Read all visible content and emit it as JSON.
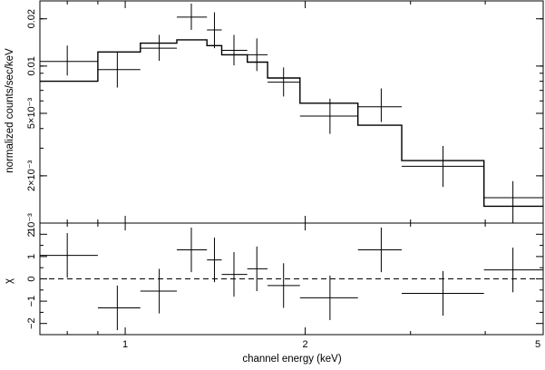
{
  "chart_data": [
    {
      "panel": "spectrum",
      "type": "line",
      "ylabel": "normalized counts/sec/keV",
      "yscale": "log",
      "ylim": [
        0.001,
        0.026
      ],
      "xscale": "log",
      "xlim": [
        0.72,
        5.0
      ],
      "y_ticks": [
        {
          "value": 0.02,
          "label": "0.02"
        },
        {
          "value": 0.01,
          "label": "0.01"
        },
        {
          "value": 0.005,
          "label": "5×10⁻³"
        },
        {
          "value": 0.002,
          "label": "2×10⁻³"
        },
        {
          "value": 0.001,
          "label": "10⁻³"
        }
      ],
      "data_points": [
        {
          "x": 0.8,
          "xlo": 0.72,
          "xhi": 0.9,
          "y": 0.0107,
          "ylo": 0.0087,
          "yhi": 0.0135
        },
        {
          "x": 0.97,
          "xlo": 0.9,
          "xhi": 1.06,
          "y": 0.0095,
          "ylo": 0.0073,
          "yhi": 0.0123
        },
        {
          "x": 1.14,
          "xlo": 1.06,
          "xhi": 1.22,
          "y": 0.013,
          "ylo": 0.0108,
          "yhi": 0.0158
        },
        {
          "x": 1.29,
          "xlo": 1.22,
          "xhi": 1.37,
          "y": 0.0205,
          "ylo": 0.017,
          "yhi": 0.025
        },
        {
          "x": 1.41,
          "xlo": 1.37,
          "xhi": 1.45,
          "y": 0.017,
          "ylo": 0.013,
          "yhi": 0.022
        },
        {
          "x": 1.52,
          "xlo": 1.45,
          "xhi": 1.6,
          "y": 0.0126,
          "ylo": 0.0101,
          "yhi": 0.0158
        },
        {
          "x": 1.66,
          "xlo": 1.6,
          "xhi": 1.73,
          "y": 0.0118,
          "ylo": 0.0093,
          "yhi": 0.015
        },
        {
          "x": 1.84,
          "xlo": 1.73,
          "xhi": 1.96,
          "y": 0.0079,
          "ylo": 0.0064,
          "yhi": 0.0098
        },
        {
          "x": 2.2,
          "xlo": 1.96,
          "xhi": 2.45,
          "y": 0.0048,
          "ylo": 0.0037,
          "yhi": 0.0062
        },
        {
          "x": 2.68,
          "xlo": 2.45,
          "xhi": 2.9,
          "y": 0.0055,
          "ylo": 0.0044,
          "yhi": 0.0072
        },
        {
          "x": 3.4,
          "xlo": 2.9,
          "xhi": 3.98,
          "y": 0.0023,
          "ylo": 0.0017,
          "yhi": 0.0031
        },
        {
          "x": 4.45,
          "xlo": 3.98,
          "xhi": 5.0,
          "y": 0.00145,
          "ylo": 0.001,
          "yhi": 0.00185
        }
      ],
      "model": [
        {
          "xlo": 0.72,
          "xhi": 0.9,
          "y": 0.008
        },
        {
          "xlo": 0.9,
          "xhi": 1.06,
          "y": 0.0123
        },
        {
          "xlo": 1.06,
          "xhi": 1.22,
          "y": 0.014
        },
        {
          "xlo": 1.22,
          "xhi": 1.37,
          "y": 0.0147
        },
        {
          "xlo": 1.37,
          "xhi": 1.45,
          "y": 0.0135
        },
        {
          "xlo": 1.45,
          "xhi": 1.6,
          "y": 0.0118
        },
        {
          "xlo": 1.6,
          "xhi": 1.73,
          "y": 0.0106
        },
        {
          "xlo": 1.73,
          "xhi": 1.96,
          "y": 0.0084
        },
        {
          "xlo": 1.96,
          "xhi": 2.45,
          "y": 0.0058
        },
        {
          "xlo": 2.45,
          "xhi": 2.9,
          "y": 0.0042
        },
        {
          "xlo": 2.9,
          "xhi": 3.98,
          "y": 0.0025
        },
        {
          "xlo": 3.98,
          "xhi": 5.0,
          "y": 0.00128
        }
      ]
    },
    {
      "panel": "residuals",
      "type": "scatter",
      "ylabel": "χ",
      "ylim": [
        -2.5,
        2.5
      ],
      "reference_line": 0,
      "y_ticks": [
        {
          "value": 2,
          "label": "2"
        },
        {
          "value": 1,
          "label": "1"
        },
        {
          "value": 0,
          "label": "0"
        },
        {
          "value": -1,
          "label": "−1"
        },
        {
          "value": -2,
          "label": "−2"
        }
      ],
      "xlabel": "channel energy (keV)",
      "x_ticks": [
        {
          "value": 1,
          "label": "1"
        },
        {
          "value": 2,
          "label": "2"
        },
        {
          "value": 5,
          "label": "5"
        }
      ],
      "data_points": [
        {
          "x": 0.8,
          "xlo": 0.72,
          "xhi": 0.9,
          "y": 1.05,
          "ylo": 0.05,
          "yhi": 2.05
        },
        {
          "x": 0.97,
          "xlo": 0.9,
          "xhi": 1.06,
          "y": -1.3,
          "ylo": -2.3,
          "yhi": -0.3
        },
        {
          "x": 1.14,
          "xlo": 1.06,
          "xhi": 1.22,
          "y": -0.55,
          "ylo": -1.55,
          "yhi": 0.45
        },
        {
          "x": 1.29,
          "xlo": 1.22,
          "xhi": 1.37,
          "y": 1.3,
          "ylo": 0.3,
          "yhi": 2.3
        },
        {
          "x": 1.41,
          "xlo": 1.37,
          "xhi": 1.45,
          "y": 0.85,
          "ylo": -0.15,
          "yhi": 1.85
        },
        {
          "x": 1.52,
          "xlo": 1.45,
          "xhi": 1.6,
          "y": 0.2,
          "ylo": -0.8,
          "yhi": 1.2
        },
        {
          "x": 1.66,
          "xlo": 1.6,
          "xhi": 1.73,
          "y": 0.45,
          "ylo": -0.55,
          "yhi": 1.45
        },
        {
          "x": 1.84,
          "xlo": 1.73,
          "xhi": 1.96,
          "y": -0.3,
          "ylo": -1.3,
          "yhi": 0.7
        },
        {
          "x": 2.2,
          "xlo": 1.96,
          "xhi": 2.45,
          "y": -0.85,
          "ylo": -1.85,
          "yhi": 0.15
        },
        {
          "x": 2.68,
          "xlo": 2.45,
          "xhi": 2.9,
          "y": 1.3,
          "ylo": 0.3,
          "yhi": 2.3
        },
        {
          "x": 3.4,
          "xlo": 2.9,
          "xhi": 3.98,
          "y": -0.65,
          "ylo": -1.65,
          "yhi": 0.35
        },
        {
          "x": 4.45,
          "xlo": 3.98,
          "xhi": 5.0,
          "y": 0.4,
          "ylo": -0.6,
          "yhi": 1.4
        }
      ]
    }
  ],
  "colors": {
    "ink": "#000000",
    "background": "#ffffff"
  }
}
